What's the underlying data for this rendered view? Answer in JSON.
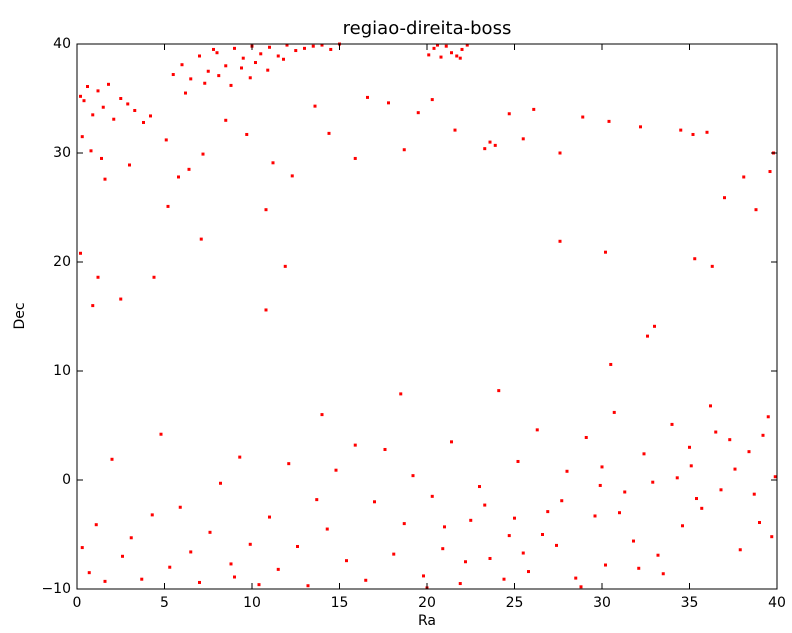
{
  "chart_data": {
    "type": "scatter",
    "title": "regiao-direita-boss",
    "x_label": "Ra",
    "y_label": "Dec",
    "color": "#ff0000",
    "xlim": [
      0,
      40
    ],
    "ylim": [
      -10,
      40
    ],
    "xticks": [
      0,
      5,
      10,
      15,
      20,
      25,
      30,
      35,
      40
    ],
    "yticks": [
      {
        "value": -10,
        "label": "−10"
      },
      0,
      10,
      20,
      30,
      40
    ],
    "x": [
      5.5,
      6,
      6.5,
      7,
      7.5,
      8,
      8.5,
      9,
      9.5,
      10,
      10.5,
      11,
      11.5,
      12,
      12.5,
      13,
      13.5,
      14,
      14.5,
      15,
      6.2,
      7.3,
      8.1,
      8.8,
      9.4,
      10.2,
      10.9,
      11.8,
      7.8,
      9.9,
      20.1,
      20.4,
      20.8,
      21.1,
      21.4,
      21.7,
      22.0,
      22.3,
      20.6,
      21.9,
      0.2,
      0.4,
      0.6,
      0.9,
      1.2,
      1.5,
      1.8,
      2.1,
      2.5,
      2.9,
      0.3,
      0.8,
      1.4,
      3.3,
      3.8,
      4.2,
      5.1,
      5.8,
      6.4,
      7.2,
      8.5,
      9.7,
      11.2,
      12.3,
      13.6,
      14.4,
      15.9,
      16.6,
      17.8,
      18.7,
      19.5,
      20.3,
      21.6,
      23.3,
      23.6,
      23.9,
      24.7,
      26.1,
      27.6,
      28.9,
      30.4,
      32.2,
      34.5,
      35.2,
      36.0,
      37.0,
      38.1,
      38.8,
      39.6,
      39.8,
      5.2,
      10.8,
      1.6,
      3.0,
      25.5,
      0.2,
      0.9,
      1.2,
      2.5,
      4.4,
      7.1,
      10.8,
      11.9,
      27.6,
      30.2,
      32.6,
      33.0,
      35.3,
      36.3,
      30.5,
      0.3,
      0.7,
      1.1,
      1.6,
      2.0,
      2.6,
      3.1,
      3.7,
      4.3,
      4.8,
      5.3,
      5.9,
      6.5,
      7.0,
      7.6,
      8.2,
      8.8,
      9.3,
      9.9,
      10.4,
      11.0,
      11.5,
      12.1,
      12.6,
      13.2,
      13.7,
      14.3,
      14.8,
      15.4,
      15.9,
      16.5,
      17.0,
      17.6,
      18.1,
      18.7,
      19.2,
      19.8,
      20.3,
      20.9,
      21.4,
      21.9,
      22.5,
      23.0,
      23.6,
      24.1,
      24.7,
      25.2,
      25.8,
      26.3,
      26.9,
      27.4,
      28.0,
      28.5,
      29.1,
      29.6,
      30.2,
      30.7,
      31.3,
      31.8,
      32.4,
      32.9,
      33.5,
      34.0,
      34.6,
      35.1,
      35.7,
      36.2,
      36.8,
      37.3,
      37.9,
      38.4,
      39.0,
      39.5,
      39.9,
      22.2,
      24.4,
      26.6,
      28.8,
      31.0,
      33.2,
      35.4,
      37.6,
      39.2,
      21.0,
      23.3,
      25.5,
      27.7,
      29.9,
      32.1,
      34.3,
      36.5,
      38.7,
      20.0,
      25.0,
      30.0,
      35.0,
      39.7,
      18.5,
      14.0,
      9.0
    ],
    "values": [
      37.2,
      38.1,
      36.8,
      38.9,
      37.5,
      39.2,
      38.0,
      39.6,
      38.7,
      39.8,
      39.1,
      39.7,
      38.9,
      39.9,
      39.4,
      39.6,
      39.8,
      39.9,
      39.5,
      40.0,
      35.5,
      36.4,
      37.1,
      36.2,
      37.8,
      38.3,
      37.6,
      38.6,
      39.5,
      36.9,
      39.0,
      39.6,
      38.8,
      39.8,
      39.2,
      38.9,
      39.5,
      39.9,
      39.9,
      38.7,
      35.2,
      34.8,
      36.1,
      33.5,
      35.7,
      34.2,
      36.3,
      33.1,
      35.0,
      34.5,
      31.5,
      30.2,
      29.5,
      33.9,
      32.8,
      33.4,
      31.2,
      27.8,
      28.5,
      29.9,
      33.0,
      31.7,
      29.1,
      27.9,
      34.3,
      31.8,
      29.5,
      35.1,
      34.6,
      30.3,
      33.7,
      34.9,
      32.1,
      30.4,
      31.0,
      30.7,
      33.6,
      34.0,
      30.0,
      33.3,
      32.9,
      32.4,
      32.1,
      31.7,
      31.9,
      25.9,
      27.8,
      24.8,
      28.3,
      30.0,
      25.1,
      24.8,
      27.6,
      28.9,
      31.3,
      20.8,
      16.0,
      18.6,
      16.6,
      18.6,
      22.1,
      15.6,
      19.6,
      21.9,
      20.9,
      13.2,
      14.1,
      20.3,
      19.6,
      10.6,
      -6.2,
      -8.5,
      -4.1,
      -9.3,
      1.9,
      -7.0,
      -5.3,
      -9.1,
      -3.2,
      4.2,
      -8.0,
      -2.5,
      -6.6,
      -9.4,
      -4.8,
      -0.3,
      -7.7,
      2.1,
      -5.9,
      -9.6,
      -3.4,
      -8.2,
      1.5,
      -6.1,
      -9.7,
      -1.8,
      -4.5,
      0.9,
      -7.4,
      3.2,
      -9.2,
      -2.0,
      2.8,
      -6.8,
      -4.0,
      0.4,
      -8.8,
      -1.5,
      -6.3,
      3.5,
      -9.5,
      -3.7,
      -0.6,
      -7.2,
      8.2,
      -5.1,
      1.7,
      -8.4,
      4.6,
      -2.9,
      -6.0,
      0.8,
      -9.0,
      3.9,
      -3.3,
      -7.8,
      6.2,
      -1.1,
      -5.6,
      2.4,
      -0.2,
      -8.6,
      5.1,
      -4.2,
      1.3,
      -2.6,
      6.8,
      -0.9,
      3.7,
      -6.4,
      2.6,
      -3.9,
      5.8,
      0.3,
      -7.5,
      -9.1,
      -5.0,
      -9.8,
      -3.0,
      -6.9,
      -1.7,
      1.0,
      4.1,
      -4.3,
      -2.3,
      -6.7,
      -1.9,
      -0.5,
      -8.1,
      0.2,
      4.4,
      -1.3,
      -9.9,
      -3.5,
      1.2,
      3.0,
      -5.2,
      7.9,
      6.0,
      -8.9
    ]
  }
}
